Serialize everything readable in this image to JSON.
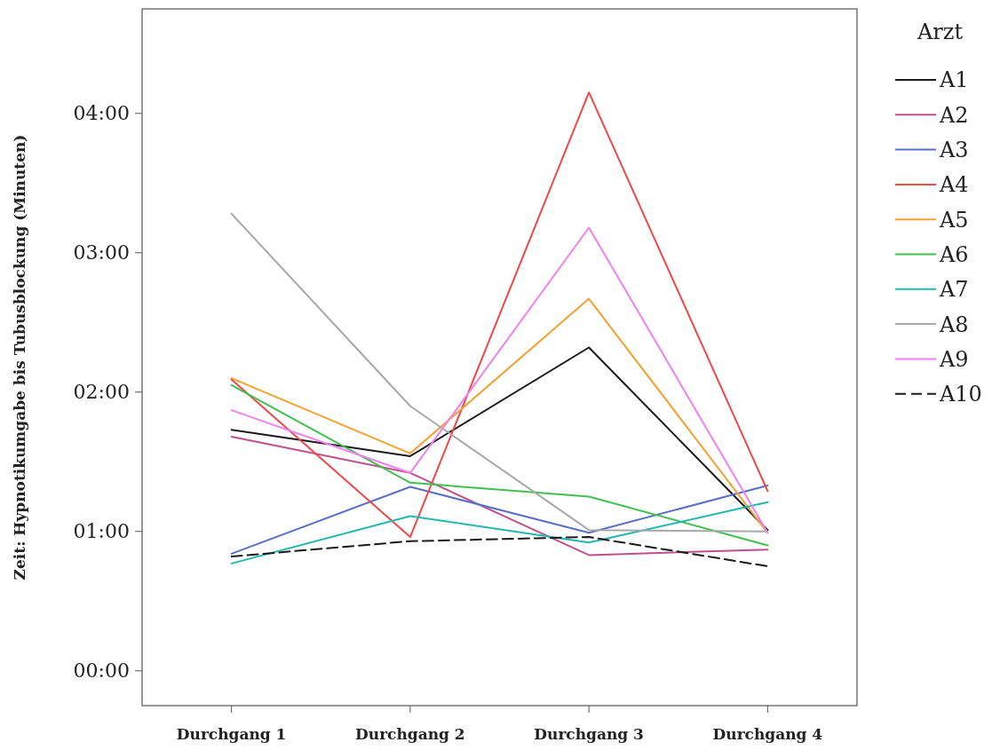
{
  "chart_data": {
    "type": "line",
    "ylabel": "Zeit: Hypnotikumgabe bis Tubusblockung (Minuten)",
    "legend_title": "Arzt",
    "legend": "right",
    "grid": false,
    "categories": [
      "Durchgang 1",
      "Durchgang 2",
      "Durchgang 3",
      "Durchgang 4"
    ],
    "ylim": [
      -0.25,
      4.75
    ],
    "yticks": [
      {
        "value": 0,
        "label": "00:00"
      },
      {
        "value": 1,
        "label": "01:00"
      },
      {
        "value": 2,
        "label": "02:00"
      },
      {
        "value": 3,
        "label": "03:00"
      },
      {
        "value": 4,
        "label": "04:00"
      }
    ],
    "series": [
      {
        "name": "A1",
        "color": "#1a1a1a",
        "line_style": "solid",
        "values": [
          1.73,
          1.54,
          2.32,
          1.01
        ]
      },
      {
        "name": "A2",
        "color": "#c0508c",
        "line_style": "solid",
        "values": [
          1.68,
          1.42,
          0.83,
          0.87
        ]
      },
      {
        "name": "A3",
        "color": "#5a6fc8",
        "line_style": "solid",
        "values": [
          0.84,
          1.32,
          0.99,
          1.33
        ]
      },
      {
        "name": "A4",
        "color": "#f04848",
        "line_style": "solid",
        "values": [
          2.09,
          0.96,
          4.15,
          1.29
        ]
      },
      {
        "name": "A5",
        "color": "#f5a030",
        "line_style": "solid",
        "values": [
          2.1,
          1.56,
          2.67,
          0.99
        ]
      },
      {
        "name": "A6",
        "color": "#40c050",
        "line_style": "solid",
        "values": [
          2.05,
          1.35,
          1.25,
          0.9
        ]
      },
      {
        "name": "A7",
        "color": "#20b8b0",
        "line_style": "solid",
        "values": [
          0.77,
          1.11,
          0.92,
          1.21
        ]
      },
      {
        "name": "A8",
        "color": "#a8a8a8",
        "line_style": "solid",
        "values": [
          3.28,
          1.9,
          1.01,
          1.0
        ]
      },
      {
        "name": "A9",
        "color": "#f080f0",
        "line_style": "solid",
        "values": [
          1.87,
          1.42,
          3.18,
          0.99
        ]
      },
      {
        "name": "A10",
        "color": "#1a1a1a",
        "line_style": "dashed",
        "values": [
          0.82,
          0.93,
          0.96,
          0.75
        ]
      }
    ]
  }
}
